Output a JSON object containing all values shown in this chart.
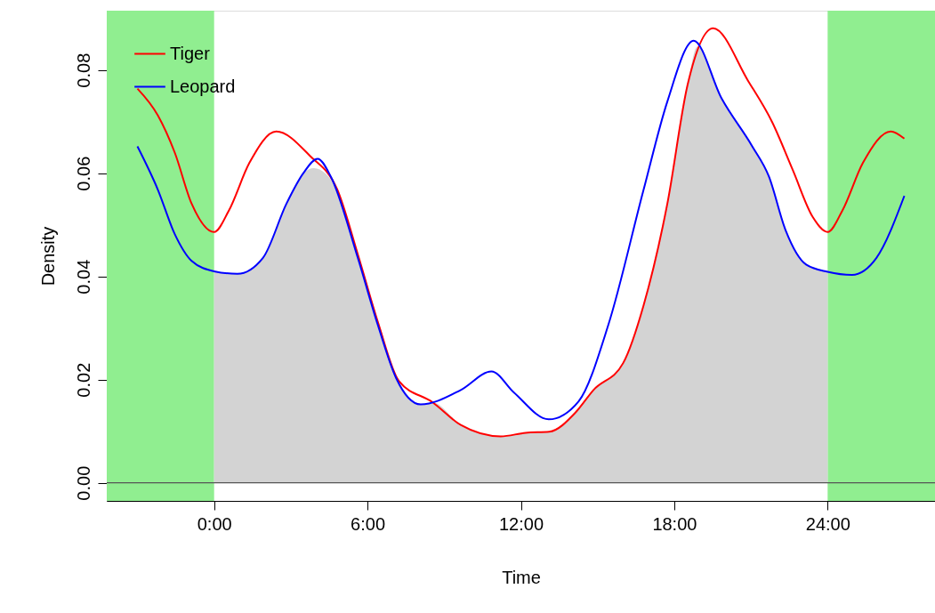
{
  "chart_data": {
    "type": "line",
    "xlabel": "Time",
    "ylabel": "Density",
    "xlim": [
      -4.2,
      28.2
    ],
    "ylim": [
      -0.0035,
      0.0915
    ],
    "xticks": [
      {
        "value": 0,
        "label": "0:00"
      },
      {
        "value": 6,
        "label": "6:00"
      },
      {
        "value": 12,
        "label": "12:00"
      },
      {
        "value": 18,
        "label": "18:00"
      },
      {
        "value": 24,
        "label": "24:00"
      }
    ],
    "yticks": [
      {
        "value": 0,
        "label": "0.00"
      },
      {
        "value": 0.02,
        "label": "0.02"
      },
      {
        "value": 0.04,
        "label": "0.04"
      },
      {
        "value": 0.06,
        "label": "0.06"
      },
      {
        "value": 0.08,
        "label": "0.08"
      }
    ],
    "grid": false,
    "legend": "top left",
    "line_style": "solid",
    "marker": "none",
    "bands": [
      {
        "axis": "x",
        "from": -4.2,
        "to": 0,
        "color": "#90ee90"
      },
      {
        "axis": "x",
        "from": 24,
        "to": 28.2,
        "color": "#90ee90"
      }
    ],
    "ref_lines": [
      {
        "axis": "y",
        "value": 0,
        "color": "#555555"
      }
    ],
    "series": [
      {
        "type": "area",
        "color": "#d3d3d3",
        "x": [
          0,
          0.91,
          1.91,
          2.83,
          3.49,
          3.9,
          4.82,
          5.62,
          6.41,
          7.12,
          8.08,
          8.55,
          9.65,
          11.21,
          12.19,
          13.11,
          14.15,
          14.84,
          16.0,
          16.8,
          17.73,
          18.52,
          18.9,
          19.85,
          21.04,
          21.7,
          22.36,
          23.16,
          24
        ],
        "values": [
          0.041,
          0.0405,
          0.0436,
          0.0541,
          0.06,
          0.061,
          0.0568,
          0.0436,
          0.0305,
          0.0203,
          0.0152,
          0.0156,
          0.0112,
          0.009,
          0.0097,
          0.0099,
          0.0137,
          0.018,
          0.0232,
          0.0344,
          0.0541,
          0.0771,
          0.0845,
          0.0745,
          0.0653,
          0.0594,
          0.0489,
          0.0423,
          0.0409
        ]
      },
      {
        "name": "Tiger",
        "color": "#ff0000",
        "x": [
          -3,
          -2.2,
          -1.54,
          -0.88,
          0,
          0.58,
          1.38,
          2.43,
          3.76,
          4.82,
          5.62,
          6.41,
          7.23,
          8.55,
          9.65,
          11.21,
          12.19,
          13.11,
          14.15,
          14.84,
          16.0,
          16.8,
          17.73,
          18.52,
          19.52,
          20.9,
          21.83,
          22.63,
          23.42,
          24,
          24.58,
          25.38,
          26.47,
          27
        ],
        "values": [
          0.0764,
          0.0712,
          0.064,
          0.0541,
          0.0486,
          0.0528,
          0.062,
          0.0681,
          0.0633,
          0.0568,
          0.0443,
          0.0311,
          0.0197,
          0.0156,
          0.0112,
          0.009,
          0.0097,
          0.0099,
          0.0137,
          0.018,
          0.0232,
          0.0344,
          0.0541,
          0.0771,
          0.0881,
          0.0778,
          0.0699,
          0.0607,
          0.0515,
          0.0486,
          0.0528,
          0.062,
          0.0681,
          0.0667
        ]
      },
      {
        "name": "Leopard",
        "color": "#0000ff",
        "x": [
          -3,
          -2.2,
          -1.54,
          -0.88,
          0,
          0.91,
          1.91,
          2.83,
          3.49,
          4.05,
          4.56,
          5.62,
          6.41,
          7.12,
          8.08,
          9.65,
          10.85,
          11.73,
          13.09,
          14.26,
          15.42,
          16.8,
          17.73,
          18.76,
          19.85,
          21.04,
          21.7,
          22.36,
          23.16,
          24,
          24.95,
          25.91,
          27
        ],
        "values": [
          0.0652,
          0.0568,
          0.0482,
          0.043,
          0.041,
          0.0405,
          0.0436,
          0.0541,
          0.06,
          0.0628,
          0.0594,
          0.0436,
          0.0305,
          0.0203,
          0.0152,
          0.018,
          0.0216,
          0.0175,
          0.0123,
          0.0158,
          0.0306,
          0.0568,
          0.0739,
          0.0857,
          0.0745,
          0.0653,
          0.0594,
          0.0489,
          0.0423,
          0.0409,
          0.0403,
          0.0436,
          0.0556
        ]
      }
    ]
  }
}
